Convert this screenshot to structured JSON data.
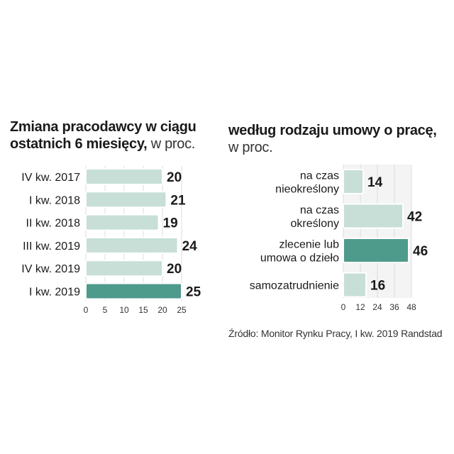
{
  "left_chart": {
    "title_bold": "Zmiana pracodawcy w ciągu ostatnich 6 miesięcy,",
    "title_unit": "w proc."
  },
  "right_chart": {
    "title_bold": "według rodzaju umowy o pracę,",
    "title_unit": "w proc."
  },
  "source": "Źródło: Monitor Rynku Pracy, I kw. 2019 Randstad",
  "colors": {
    "bar_light": "#c7dfd6",
    "bar_highlight": "#4e9a8b",
    "bar_stroke": "#ffffff",
    "grid": "#dddddd"
  },
  "chart_data": [
    {
      "type": "bar",
      "orientation": "horizontal",
      "title": "Zmiana pracodawcy w ciągu ostatnich 6 miesięcy, w proc.",
      "categories": [
        "IV kw. 2017",
        "I kw. 2018",
        "II kw. 2018",
        "III kw. 2019",
        "IV kw. 2019",
        "I kw. 2019"
      ],
      "values": [
        20,
        21,
        19,
        24,
        20,
        25
      ],
      "highlight_index": 5,
      "xlim": [
        0,
        25
      ],
      "ticks": [
        "0",
        "5",
        "10",
        "15",
        "20",
        "25"
      ],
      "grid": true
    },
    {
      "type": "bar",
      "orientation": "horizontal",
      "title": "według rodzaju umowy o pracę, w proc.",
      "categories": [
        [
          "na czas",
          "nieokreślony"
        ],
        [
          "na czas",
          "określony"
        ],
        [
          "zlecenie lub",
          "umowa o dzieło"
        ],
        [
          "samozatrudnienie"
        ]
      ],
      "values": [
        14,
        42,
        46,
        16
      ],
      "highlight_index": 2,
      "xlim": [
        0,
        48
      ],
      "ticks": [
        "0",
        "12",
        "24",
        "36",
        "48"
      ],
      "grid": true
    }
  ]
}
